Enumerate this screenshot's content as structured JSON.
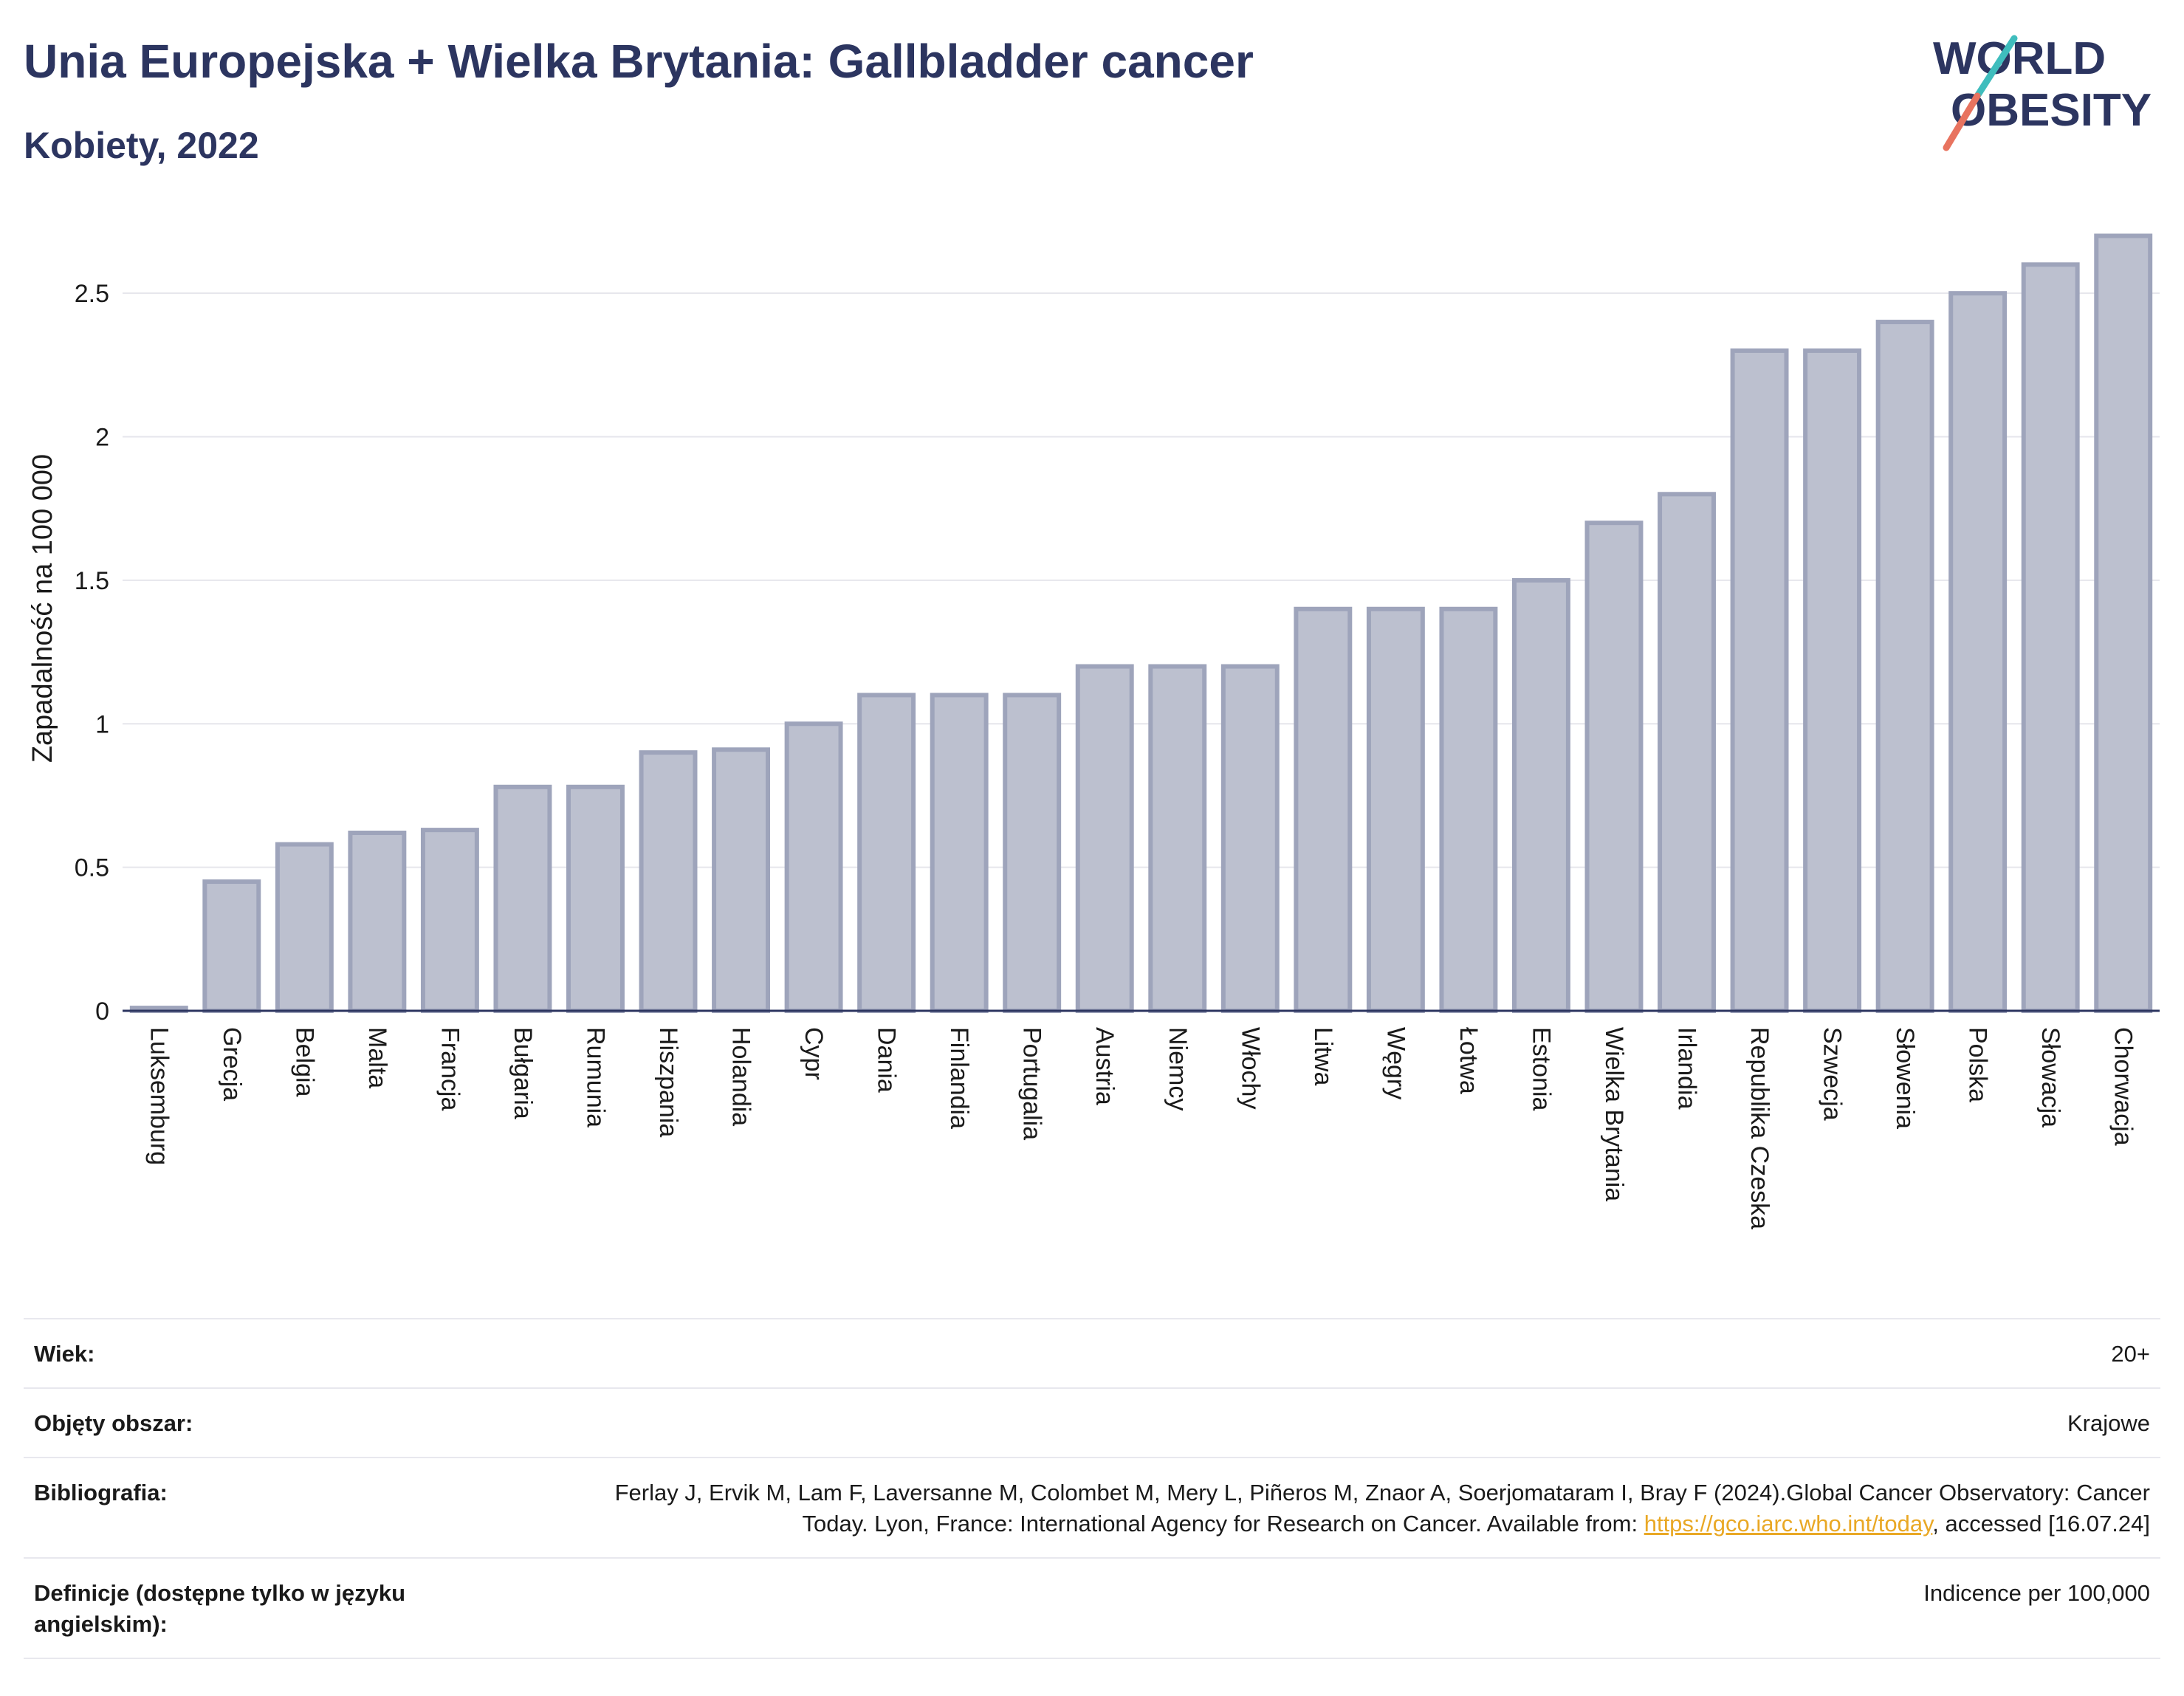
{
  "header": {
    "title": "Unia Europejska + Wielka Brytania: Gallbladder cancer",
    "subtitle": "Kobiety, 2022"
  },
  "logo": {
    "line1": "WORLD",
    "line2": "OBESITY"
  },
  "colors": {
    "bar_fill": "#bcc0cf",
    "bar_stroke": "#9ea4bb",
    "title": "#2c3560",
    "grid": "#e6e6ec",
    "link": "#e9a825"
  },
  "chart_data": {
    "type": "bar",
    "ylabel": "Zapadalność na 100 000",
    "ylim": [
      0,
      2.75
    ],
    "yticks": [
      0,
      0.5,
      1,
      1.5,
      2,
      2.5
    ],
    "ytick_labels": [
      "0",
      "0.5",
      "1",
      "1.5",
      "2",
      "2.5"
    ],
    "grid": true,
    "categories": [
      "Luksemburg",
      "Grecja",
      "Belgia",
      "Malta",
      "Francja",
      "Bułgaria",
      "Rumunia",
      "Hiszpania",
      "Holandia",
      "Cypr",
      "Dania",
      "Finlandia",
      "Portugalia",
      "Austria",
      "Niemcy",
      "Włochy",
      "Litwa",
      "Węgry",
      "Łotwa",
      "Estonia",
      "Wielka Brytania",
      "Irlandia",
      "Republika Czeska",
      "Szwecja",
      "Słowenia",
      "Polska",
      "Słowacja",
      "Chorwacja"
    ],
    "values": [
      0.01,
      0.45,
      0.58,
      0.62,
      0.63,
      0.78,
      0.78,
      0.9,
      0.91,
      1.0,
      1.1,
      1.1,
      1.1,
      1.2,
      1.2,
      1.2,
      1.4,
      1.4,
      1.4,
      1.5,
      1.7,
      1.8,
      2.3,
      2.3,
      2.4,
      2.5,
      2.6,
      2.7
    ]
  },
  "meta": {
    "age_label": "Wiek:",
    "age_value": "20+",
    "coverage_label": "Objęty obszar:",
    "coverage_value": "Krajowe",
    "bibliography_label": "Bibliografia:",
    "bibliography_text": "Ferlay J, Ervik M, Lam F, Laversanne M, Colombet M, Mery L, Piñeros M, Znaor A, Soerjomataram I, Bray F (2024).Global Cancer Observatory: Cancer Today. Lyon, France: International Agency for Research on Cancer. Available from: ",
    "bibliography_link": "https://gco.iarc.who.int/today",
    "bibliography_suffix": ", accessed [16.07.24]",
    "definitions_label": "Definicje (dostępne tylko w języku angielskim):",
    "definitions_value": "Indicence per 100,000"
  }
}
